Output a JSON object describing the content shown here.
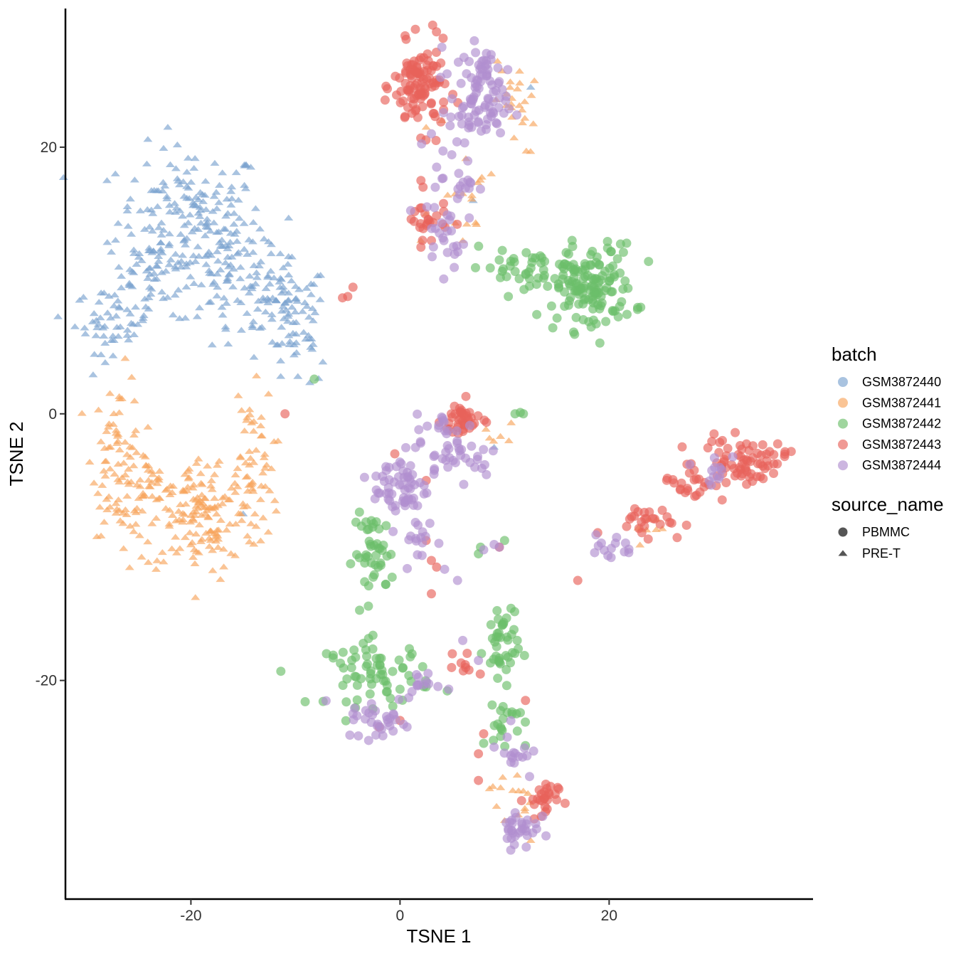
{
  "chart_data": {
    "type": "scatter",
    "xlabel": "TSNE 1",
    "ylabel": "TSNE 2",
    "xlim": [
      -32,
      39.5
    ],
    "ylim": [
      -36.4,
      30.4
    ],
    "xticks": [
      -20,
      0,
      20
    ],
    "yticks": [
      20,
      0,
      -20
    ],
    "grid": false,
    "legend_position": "right",
    "legend": {
      "color_title": "batch",
      "shape_title": "source_name",
      "shape_entries": [
        {
          "label": "PBMMC",
          "shape": "circle"
        },
        {
          "label": "PRE-T",
          "shape": "triangle"
        }
      ]
    },
    "series": [
      {
        "name": "GSM3872440",
        "color": "#7BA3D0",
        "shape": "triangle",
        "clusters": [
          {
            "cx": -20,
            "cy": 14.5,
            "sx": 3.5,
            "sy": 2.8,
            "n": 180
          },
          {
            "cx": -23.5,
            "cy": 10.5,
            "sx": 2.5,
            "sy": 2,
            "n": 60
          },
          {
            "cx": -27.5,
            "cy": 7.0,
            "sx": 1.8,
            "sy": 1.2,
            "n": 50
          },
          {
            "cx": -13,
            "cy": 8.5,
            "sx": 2.5,
            "sy": 1.8,
            "n": 70
          },
          {
            "cx": -10,
            "cy": 6.5,
            "sx": 1.5,
            "sy": 2.5,
            "n": 60
          },
          {
            "cx": -16,
            "cy": 11,
            "sx": 2,
            "sy": 1.5,
            "n": 30
          }
        ],
        "points": [
          [
            12.5,
            24.5
          ],
          [
            7.0,
            16.0
          ],
          [
            9.0,
            -2.5
          ],
          [
            -15.0,
            -7.5
          ]
        ]
      },
      {
        "name": "GSM3872441",
        "color": "#F8A45C",
        "shape": "triangle",
        "clusters": [
          {
            "cx": -27,
            "cy": -3,
            "sx": 1.2,
            "sy": 3,
            "n": 60
          },
          {
            "cx": -25,
            "cy": -5.5,
            "sx": 1.5,
            "sy": 1.5,
            "n": 45
          },
          {
            "cx": -19,
            "cy": -7.5,
            "sx": 3,
            "sy": 2.2,
            "n": 170
          },
          {
            "cx": -14.5,
            "cy": -3,
            "sx": 1.2,
            "sy": 2.5,
            "n": 45
          },
          {
            "cx": 11.0,
            "cy": 23,
            "sx": 1.0,
            "sy": 1.8,
            "n": 25
          },
          {
            "cx": 6.5,
            "cy": 16.5,
            "sx": 1,
            "sy": 1.5,
            "n": 14
          },
          {
            "cx": 10.5,
            "cy": -28.5,
            "sx": 1,
            "sy": 1,
            "n": 14
          },
          {
            "cx": 9.5,
            "cy": -1.5,
            "sx": 0.8,
            "sy": 0.6,
            "n": 6
          },
          {
            "cx": 23.5,
            "cy": -8.5,
            "sx": 1.2,
            "sy": 0.6,
            "n": 8
          }
        ],
        "points": [
          [
            2.5,
            21.5
          ],
          [
            4.0,
            22.0
          ],
          [
            2.5,
            15.0
          ],
          [
            2.0,
            13.0
          ],
          [
            6.0,
            13.0
          ],
          [
            10.0,
            -30.5
          ],
          [
            12.5,
            -32.0
          ]
        ]
      },
      {
        "name": "GSM3872442",
        "color": "#6CBF6A",
        "shape": "circle",
        "clusters": [
          {
            "cx": 18,
            "cy": 9.5,
            "sx": 2.2,
            "sy": 1.6,
            "n": 150
          },
          {
            "cx": 11.5,
            "cy": 11,
            "sx": 2.5,
            "sy": 0.7,
            "n": 30
          },
          {
            "cx": -2.5,
            "cy": -10.5,
            "sx": 1,
            "sy": 1.5,
            "n": 45
          },
          {
            "cx": -2.0,
            "cy": -19.5,
            "sx": 2.5,
            "sy": 1.2,
            "n": 70
          },
          {
            "cx": 9.7,
            "cy": -17.5,
            "sx": 0.8,
            "sy": 2.0,
            "n": 45
          },
          {
            "cx": 10.0,
            "cy": -23.5,
            "sx": 1.0,
            "sy": 1.0,
            "n": 18
          }
        ],
        "points": [
          [
            -8.2,
            2.6
          ],
          [
            11.0,
            0.0
          ],
          [
            11.5,
            0.1
          ],
          [
            11.8,
            0.0
          ],
          [
            7.5,
            -10.5
          ],
          [
            7.7,
            -10.0
          ],
          [
            10.0,
            -9.5
          ]
        ]
      },
      {
        "name": "GSM3872443",
        "color": "#E8625A",
        "shape": "circle",
        "clusters": [
          {
            "cx": 2,
            "cy": 24.5,
            "sx": 1.3,
            "sy": 1.6,
            "n": 110
          },
          {
            "cx": 2.5,
            "cy": 14.5,
            "sx": 1.0,
            "sy": 0.7,
            "n": 22
          },
          {
            "cx": 6,
            "cy": -0.5,
            "sx": 1.0,
            "sy": 0.7,
            "n": 40
          },
          {
            "cx": 33,
            "cy": -3.5,
            "sx": 2.0,
            "sy": 0.8,
            "n": 70
          },
          {
            "cx": 28,
            "cy": -5.0,
            "sx": 1.5,
            "sy": 0.8,
            "n": 25
          },
          {
            "cx": 23.5,
            "cy": -8.0,
            "sx": 1.8,
            "sy": 0.6,
            "n": 25
          },
          {
            "cx": 13.5,
            "cy": -29.0,
            "sx": 0.8,
            "sy": 0.8,
            "n": 28
          },
          {
            "cx": 6.0,
            "cy": -19.0,
            "sx": 0.6,
            "sy": 0.5,
            "n": 8
          }
        ],
        "points": [
          [
            -4.5,
            9.5
          ],
          [
            -5.0,
            8.8
          ],
          [
            -5.5,
            8.7
          ],
          [
            -11.0,
            0.0
          ],
          [
            2.0,
            17.5
          ],
          [
            2.2,
            17.0
          ],
          [
            2.0,
            12.5
          ],
          [
            3.0,
            13.0
          ],
          [
            -0.5,
            -3.0
          ],
          [
            2.5,
            -5.0
          ],
          [
            2.5,
            -9.5
          ],
          [
            3.5,
            -11.5
          ],
          [
            17.0,
            -12.5
          ],
          [
            8.0,
            -24.0
          ],
          [
            7.5,
            -25.5
          ],
          [
            7.5,
            -27.5
          ],
          [
            0.0,
            -23.0
          ],
          [
            -2.0,
            -23.5
          ],
          [
            3.0,
            -11.0
          ],
          [
            3.0,
            -13.5
          ],
          [
            5.0,
            -18.0
          ],
          [
            12.0,
            -21.5
          ],
          [
            9.5,
            -10.0
          ]
        ]
      },
      {
        "name": "GSM3872444",
        "color": "#B18FCF",
        "shape": "circle",
        "clusters": [
          {
            "cx": 7.5,
            "cy": 23.0,
            "sx": 1.4,
            "sy": 1.4,
            "n": 75
          },
          {
            "cx": 8.0,
            "cy": 26.5,
            "sx": 1.0,
            "sy": 0.7,
            "n": 20
          },
          {
            "cx": 5,
            "cy": 17.5,
            "sx": 1.2,
            "sy": 1.5,
            "n": 25
          },
          {
            "cx": 4.5,
            "cy": 13.0,
            "sx": 0.9,
            "sy": 1.2,
            "n": 20
          },
          {
            "cx": 0,
            "cy": -5.5,
            "sx": 1.3,
            "sy": 1.4,
            "n": 60
          },
          {
            "cx": 5.5,
            "cy": -3.0,
            "sx": 2.0,
            "sy": 0.9,
            "n": 35
          },
          {
            "cx": 4.5,
            "cy": -1.0,
            "sx": 1.5,
            "sy": 0.5,
            "n": 14
          },
          {
            "cx": 2.0,
            "cy": -9.5,
            "sx": 0.8,
            "sy": 1.0,
            "n": 15
          },
          {
            "cx": -2.0,
            "cy": -23.0,
            "sx": 1.5,
            "sy": 0.7,
            "n": 30
          },
          {
            "cx": 2.5,
            "cy": -20.5,
            "sx": 1.5,
            "sy": 0.6,
            "n": 14
          },
          {
            "cx": 11.5,
            "cy": -31.0,
            "sx": 0.9,
            "sy": 0.8,
            "n": 32
          },
          {
            "cx": 11.0,
            "cy": -25.5,
            "sx": 0.8,
            "sy": 1.0,
            "n": 15
          },
          {
            "cx": 30.5,
            "cy": -4.0,
            "sx": 1.2,
            "sy": 0.5,
            "n": 12
          },
          {
            "cx": 20.0,
            "cy": -10.0,
            "sx": 1.2,
            "sy": 0.5,
            "n": 14
          }
        ],
        "points": [
          [
            4.0,
            27.5
          ],
          [
            4.5,
            25.5
          ],
          [
            3.0,
            21.0
          ],
          [
            3.5,
            18.5
          ],
          [
            5.5,
            -12.5
          ],
          [
            9.5,
            -10.0
          ],
          [
            9.0,
            -9.8
          ],
          [
            8.0,
            -10.2
          ],
          [
            -4.5,
            -22.5
          ],
          [
            -3.0,
            -24.5
          ],
          [
            6.0,
            -17.0
          ],
          [
            7.5,
            -18.5
          ],
          [
            9.0,
            -25.0
          ]
        ]
      }
    ]
  }
}
